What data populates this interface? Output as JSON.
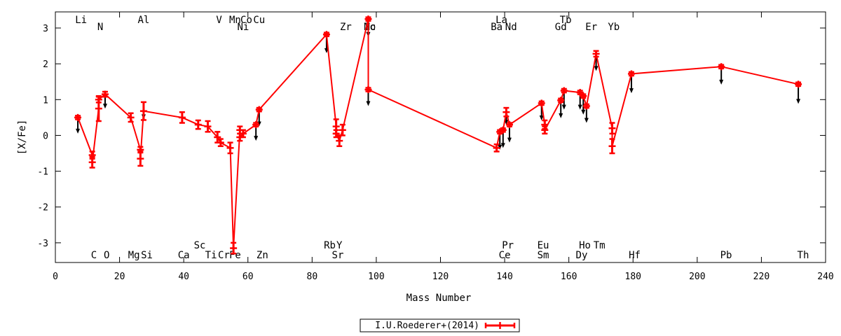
{
  "chart_data": {
    "type": "line",
    "xlabel": "Mass Number",
    "ylabel": "[X/Fe]",
    "xlim": [
      0,
      240
    ],
    "ylim": [
      -3.55,
      3.45
    ],
    "xticks": [
      0,
      20,
      40,
      60,
      80,
      100,
      120,
      140,
      160,
      180,
      200,
      220,
      240
    ],
    "yticks": [
      -3,
      -2,
      -1,
      0,
      1,
      2,
      3
    ],
    "grid": false,
    "legend_position": "bottom-center",
    "colors": {
      "series": "#ff0000",
      "limits": "#000000",
      "frame": "#000000"
    },
    "series": [
      {
        "name": "I.U.Roederer+(2014)",
        "points": [
          {
            "x": 7,
            "y": 0.5,
            "err": 0.05
          },
          {
            "x": 11.5,
            "y": -0.55,
            "err": 0.1
          },
          {
            "x": 11.5,
            "y": -0.75,
            "err": 0.15
          },
          {
            "x": 13.5,
            "y": 0.75,
            "err": 0.35
          },
          {
            "x": 13.5,
            "y": 1.0,
            "err": 0.08
          },
          {
            "x": 15.5,
            "y": 1.15,
            "err": 0.07
          },
          {
            "x": 23.5,
            "y": 0.5,
            "err": 0.12
          },
          {
            "x": 26.5,
            "y": -0.4,
            "err": 0.08
          },
          {
            "x": 26.5,
            "y": -0.65,
            "err": 0.2
          },
          {
            "x": 27.5,
            "y": 0.68,
            "err": 0.25
          },
          {
            "x": 39.5,
            "y": 0.5,
            "err": 0.15
          },
          {
            "x": 44.5,
            "y": 0.3,
            "err": 0.12
          },
          {
            "x": 47.5,
            "y": 0.25,
            "err": 0.15
          },
          {
            "x": 50.5,
            "y": -0.05,
            "err": 0.15
          },
          {
            "x": 51.5,
            "y": -0.2,
            "err": 0.1
          },
          {
            "x": 54.5,
            "y": -0.35,
            "err": 0.15
          },
          {
            "x": 55.5,
            "y": -3.15,
            "err": 0.15
          },
          {
            "x": 57.5,
            "y": 0.15,
            "err": 0.1
          },
          {
            "x": 57.5,
            "y": -0.05,
            "err": 0.1
          },
          {
            "x": 58.5,
            "y": 0.05,
            "err": 0.1
          },
          {
            "x": 62.5,
            "y": 0.3,
            "err": 0.05
          },
          {
            "x": 63.5,
            "y": 0.72,
            "err": 0.05
          },
          {
            "x": 84.5,
            "y": 2.82,
            "err": 0.05
          },
          {
            "x": 87.5,
            "y": 0.25,
            "err": 0.2
          },
          {
            "x": 87.5,
            "y": 0.05,
            "err": 0.1
          },
          {
            "x": 88.5,
            "y": -0.15,
            "err": 0.15
          },
          {
            "x": 89.5,
            "y": 0.15,
            "err": 0.15
          },
          {
            "x": 97.5,
            "y": 3.25,
            "err": 0.05
          },
          {
            "x": 97.5,
            "y": 1.28,
            "err": 0.05
          },
          {
            "x": 137.5,
            "y": -0.35,
            "err": 0.1
          },
          {
            "x": 138.5,
            "y": 0.1,
            "err": 0.05
          },
          {
            "x": 139.5,
            "y": 0.15,
            "err": 0.05
          },
          {
            "x": 140.5,
            "y": 0.65,
            "err": 0.12
          },
          {
            "x": 141.5,
            "y": 0.3,
            "err": 0.05
          },
          {
            "x": 151.5,
            "y": 0.9,
            "err": 0.05
          },
          {
            "x": 152.5,
            "y": 0.3,
            "err": 0.12
          },
          {
            "x": 152.5,
            "y": 0.15,
            "err": 0.1
          },
          {
            "x": 157.5,
            "y": 0.98,
            "err": 0.05
          },
          {
            "x": 158.5,
            "y": 1.25,
            "err": 0.05
          },
          {
            "x": 163.5,
            "y": 1.2,
            "err": 0.05
          },
          {
            "x": 164.5,
            "y": 1.1,
            "err": 0.05
          },
          {
            "x": 165.5,
            "y": 0.82,
            "err": 0.05
          },
          {
            "x": 168.5,
            "y": 2.28,
            "err": 0.08
          },
          {
            "x": 173.5,
            "y": 0.2,
            "err": 0.15
          },
          {
            "x": 173.5,
            "y": -0.3,
            "err": 0.2
          },
          {
            "x": 179.5,
            "y": 1.72,
            "err": 0.05
          },
          {
            "x": 207.5,
            "y": 1.92,
            "err": 0.05
          },
          {
            "x": 231.5,
            "y": 1.43,
            "err": 0.05
          }
        ]
      }
    ],
    "upper_limits": [
      {
        "x": 7,
        "y_from": 0.5,
        "y_to": 0.05
      },
      {
        "x": 15.5,
        "y_from": 1.15,
        "y_to": 0.75
      },
      {
        "x": 27.5,
        "y_from": 0.68,
        "y_to": 0.45
      },
      {
        "x": 62.5,
        "y_from": 0.3,
        "y_to": -0.15
      },
      {
        "x": 63.5,
        "y_from": 0.72,
        "y_to": 0.25
      },
      {
        "x": 84.5,
        "y_from": 2.82,
        "y_to": 2.3
      },
      {
        "x": 97.5,
        "y_from": 3.25,
        "y_to": 2.75
      },
      {
        "x": 97.5,
        "y_from": 1.28,
        "y_to": 0.82
      },
      {
        "x": 138.5,
        "y_from": 0.1,
        "y_to": -0.4
      },
      {
        "x": 139.5,
        "y_from": 0.15,
        "y_to": -0.35
      },
      {
        "x": 140.5,
        "y_from": 0.65,
        "y_to": 0.3
      },
      {
        "x": 141.5,
        "y_from": 0.3,
        "y_to": -0.2
      },
      {
        "x": 151.5,
        "y_from": 0.9,
        "y_to": 0.42
      },
      {
        "x": 157.5,
        "y_from": 0.98,
        "y_to": 0.48
      },
      {
        "x": 158.5,
        "y_from": 1.25,
        "y_to": 0.72
      },
      {
        "x": 163.5,
        "y_from": 1.2,
        "y_to": 0.72
      },
      {
        "x": 164.5,
        "y_from": 1.1,
        "y_to": 0.58
      },
      {
        "x": 165.5,
        "y_from": 0.82,
        "y_to": 0.35
      },
      {
        "x": 168.5,
        "y_from": 2.28,
        "y_to": 1.8
      },
      {
        "x": 179.5,
        "y_from": 1.72,
        "y_to": 1.18
      },
      {
        "x": 207.5,
        "y_from": 1.92,
        "y_to": 1.42
      },
      {
        "x": 231.5,
        "y_from": 1.43,
        "y_to": 0.88
      }
    ],
    "element_labels_top": [
      {
        "text": "Li",
        "x": 8,
        "row": 1
      },
      {
        "text": "N",
        "x": 14,
        "row": 2
      },
      {
        "text": "Al",
        "x": 27.5,
        "row": 1
      },
      {
        "text": "V",
        "x": 51,
        "row": 1
      },
      {
        "text": "Mn",
        "x": 56,
        "row": 1
      },
      {
        "text": "Ni",
        "x": 58.5,
        "row": 2
      },
      {
        "text": "Co",
        "x": 59.5,
        "row": 1
      },
      {
        "text": "Cu",
        "x": 63.5,
        "row": 1
      },
      {
        "text": "Zr",
        "x": 90.5,
        "row": 2
      },
      {
        "text": "Mo",
        "x": 98,
        "row": 2
      },
      {
        "text": "Tc",
        "x": 98,
        "row": 2
      },
      {
        "text": "La",
        "x": 139,
        "row": 1
      },
      {
        "text": "Ba",
        "x": 137.5,
        "row": 2
      },
      {
        "text": "Nd",
        "x": 142,
        "row": 2
      },
      {
        "text": "Tb",
        "x": 159,
        "row": 1
      },
      {
        "text": "Gd",
        "x": 157.5,
        "row": 2
      },
      {
        "text": "Er",
        "x": 167,
        "row": 2
      },
      {
        "text": "Yb",
        "x": 174,
        "row": 2
      }
    ],
    "element_labels_bottom": [
      {
        "text": "Sc",
        "x": 45,
        "row": 1
      },
      {
        "text": "Rb",
        "x": 85.5,
        "row": 1
      },
      {
        "text": "Y",
        "x": 88.5,
        "row": 1
      },
      {
        "text": "Pr",
        "x": 141,
        "row": 1
      },
      {
        "text": "Eu",
        "x": 152,
        "row": 1
      },
      {
        "text": "Ho",
        "x": 165,
        "row": 1
      },
      {
        "text": "Tm",
        "x": 169.5,
        "row": 1
      },
      {
        "text": "C",
        "x": 12,
        "row": 2
      },
      {
        "text": "O",
        "x": 16,
        "row": 2
      },
      {
        "text": "Mg",
        "x": 24.5,
        "row": 2
      },
      {
        "text": "Si",
        "x": 28.5,
        "row": 2
      },
      {
        "text": "Ca",
        "x": 40,
        "row": 2
      },
      {
        "text": "Ti",
        "x": 48.5,
        "row": 2
      },
      {
        "text": "Cr",
        "x": 52.5,
        "row": 2
      },
      {
        "text": "Fe",
        "x": 56,
        "row": 2
      },
      {
        "text": "Zn",
        "x": 64.5,
        "row": 2
      },
      {
        "text": "Sr",
        "x": 88,
        "row": 2
      },
      {
        "text": "Ce",
        "x": 140,
        "row": 2
      },
      {
        "text": "Sm",
        "x": 152,
        "row": 2
      },
      {
        "text": "Dy",
        "x": 164,
        "row": 2
      },
      {
        "text": "Hf",
        "x": 180.5,
        "row": 2
      },
      {
        "text": "Pb",
        "x": 209,
        "row": 2
      },
      {
        "text": "Th",
        "x": 233,
        "row": 2
      }
    ]
  }
}
